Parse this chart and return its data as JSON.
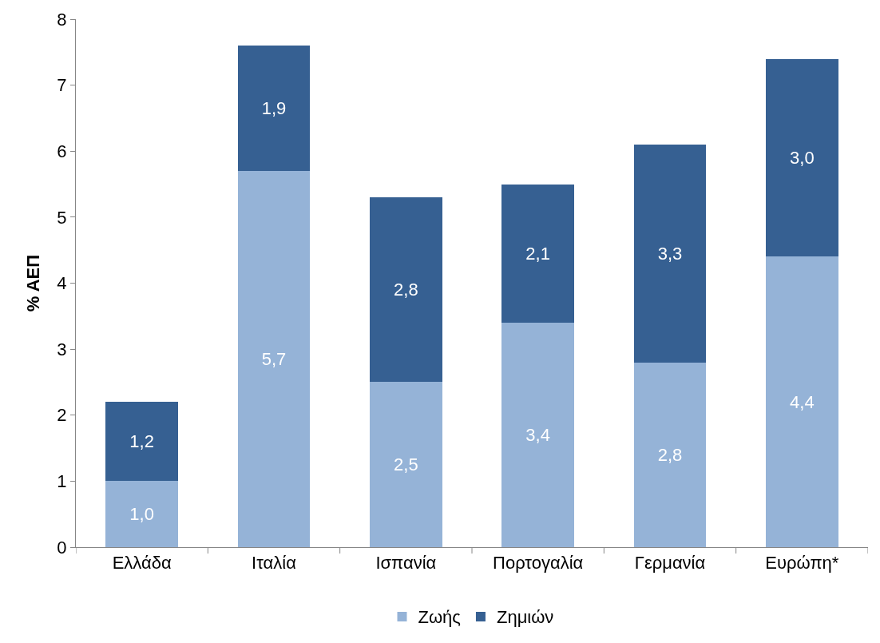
{
  "chart_data": {
    "type": "bar",
    "stacked": true,
    "ylabel": "% ΑΕΠ",
    "categories": [
      "Ελλάδα",
      "Ιταλία",
      "Ισπανία",
      "Πορτογαλία",
      "Γερμανία",
      "Ευρώπη*"
    ],
    "series": [
      {
        "name": "Ζωής",
        "color": "#95b3d7",
        "values": [
          1.0,
          5.7,
          2.5,
          3.4,
          2.8,
          4.4
        ],
        "value_labels": [
          "1,0",
          "5,7",
          "2,5",
          "3,4",
          "2,8",
          "4,4"
        ]
      },
      {
        "name": "Ζημιών",
        "color": "#366092",
        "values": [
          1.2,
          1.9,
          2.8,
          2.1,
          3.3,
          3.0
        ],
        "value_labels": [
          "1,2",
          "1,9",
          "2,8",
          "2,1",
          "3,3",
          "3,0"
        ]
      }
    ],
    "ylim": [
      0,
      8
    ],
    "yticks": [
      0,
      1,
      2,
      3,
      4,
      5,
      6,
      7,
      8
    ],
    "legend": "bottom"
  }
}
